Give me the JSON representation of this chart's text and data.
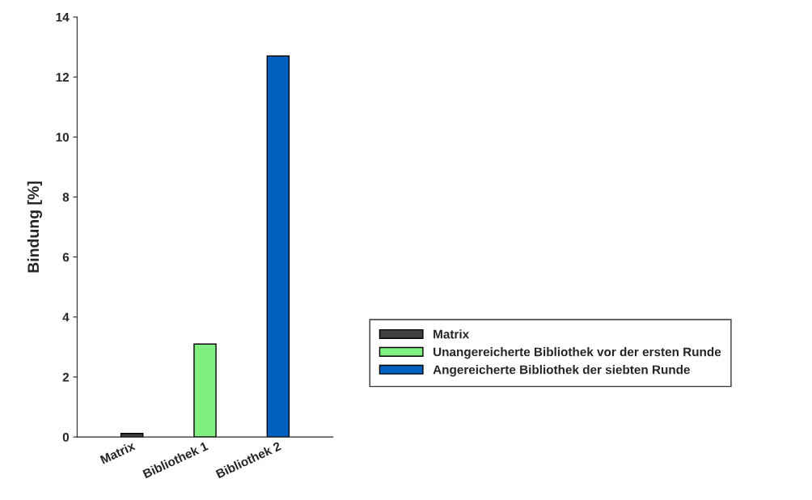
{
  "chart_data": {
    "type": "bar",
    "ylabel": "Bindung [%]",
    "categories": [
      "Matrix",
      "Bibliothek 1",
      "Bibliothek 2"
    ],
    "series": [
      {
        "name": "Matrix",
        "color": "#404040",
        "values": [
          0.12,
          null,
          null
        ]
      },
      {
        "name": "Unangereicherte Bibliothek vor der ersten Runde",
        "color": "#80f080",
        "values": [
          null,
          3.1,
          null
        ]
      },
      {
        "name": "Angereicherte Bibliothek der siebten Runde",
        "color": "#0060c0",
        "values": [
          null,
          null,
          12.7
        ]
      }
    ],
    "ylim": [
      0,
      14
    ],
    "yticks": [
      0,
      2,
      4,
      6,
      8,
      10,
      12,
      14
    ],
    "grid": false,
    "legend": "right"
  }
}
